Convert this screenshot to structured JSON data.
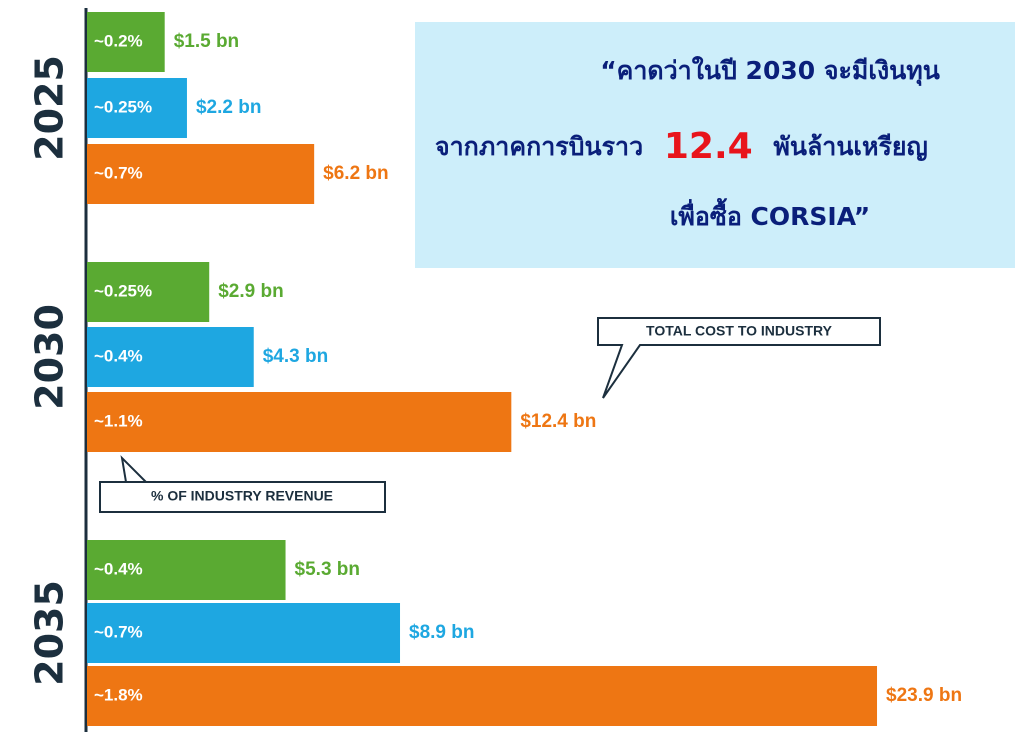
{
  "chart_data": {
    "type": "bar",
    "orientation": "horizontal",
    "categories": [
      "2025",
      "2030",
      "2035"
    ],
    "series": [
      {
        "color": "#5aaa32",
        "values": [
          1.5,
          2.9,
          5.3
        ],
        "value_labels": [
          "$1.5 bn",
          "$2.9 bn",
          "$5.3 bn"
        ],
        "share_labels": [
          "~0.2%",
          "~0.25%",
          "~0.4%"
        ]
      },
      {
        "color": "#1ea7e1",
        "values": [
          2.2,
          4.3,
          8.9
        ],
        "value_labels": [
          "$2.2 bn",
          "$4.3 bn",
          "$8.9 bn"
        ],
        "share_labels": [
          "~0.25%",
          "~0.4%",
          "~0.7%"
        ]
      },
      {
        "color": "#ee7613",
        "values": [
          6.2,
          12.4,
          23.9
        ],
        "value_labels": [
          "$6.2 bn",
          "$12.4 bn",
          "$23.9 bn"
        ],
        "share_labels": [
          "~0.7%",
          "~1.1%",
          "~1.8%"
        ]
      }
    ],
    "annotations": [
      "TOTAL COST TO INDUSTRY",
      "% OF INDUSTRY REVENUE"
    ],
    "callout": {
      "line1": "“คาดว่าในปี 2030 จะมีเงินทุน",
      "line2_start": "จากภาคการบินราว",
      "highlight": "12.4",
      "line2_end": "พันล้านเหรียญ",
      "line3": "เพื่อซื้อ CORSIA”"
    }
  }
}
